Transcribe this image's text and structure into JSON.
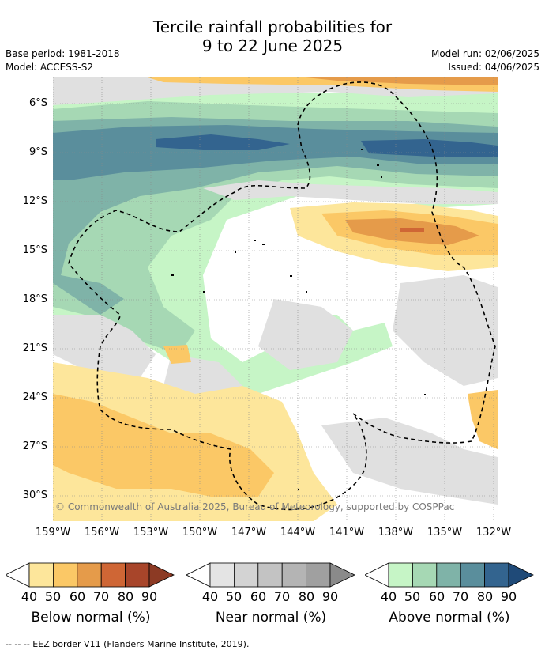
{
  "header": {
    "title_line1": "Tercile rainfall probabilities for",
    "title_line2": "9 to 22 June 2025",
    "base_period": "Base period: 1981-2018",
    "model": "Model: ACCESS-S2",
    "model_run": "Model run: 02/06/2025",
    "issued": "Issued: 04/06/2025"
  },
  "map": {
    "lat_labels": [
      "6°S",
      "9°S",
      "12°S",
      "15°S",
      "18°S",
      "21°S",
      "24°S",
      "27°S",
      "30°S"
    ],
    "lon_labels": [
      "159°W",
      "156°W",
      "153°W",
      "150°W",
      "147°W",
      "144°W",
      "141°W",
      "138°W",
      "135°W",
      "132°W"
    ],
    "copyright": "© Commonwealth of Australia 2025, Bureau of Meteorology, supported by COSPPac"
  },
  "legends": [
    {
      "title": "Below normal (%)",
      "ticks": [
        "40",
        "50",
        "60",
        "70",
        "80",
        "90"
      ],
      "colors": [
        "#fde69b",
        "#fbc866",
        "#e59b4a",
        "#cf6635",
        "#a8452a"
      ]
    },
    {
      "title": "Near normal (%)",
      "ticks": [
        "40",
        "50",
        "60",
        "70",
        "80",
        "90"
      ],
      "colors": [
        "#e4e4e4",
        "#d3d3d3",
        "#c3c3c3",
        "#b4b4b4",
        "#a0a0a0"
      ]
    },
    {
      "title": "Above normal (%)",
      "ticks": [
        "40",
        "50",
        "60",
        "70",
        "80",
        "90"
      ],
      "colors": [
        "#c6f5c6",
        "#a6d8b4",
        "#7fb3a8",
        "#5a8e9c",
        "#33648f"
      ]
    }
  ],
  "footnote": "--  --  -- EEZ border V11 (Flanders Marine Institute, 2019).",
  "colors": {
    "dry_light": "#fde69b",
    "dry_mid": "#fbc866",
    "dry_dark": "#e59b4a",
    "dry_darker": "#cf6635",
    "near": "#e0e0e0",
    "wet_light": "#c6f5c6",
    "wet_mid": "#a6d8b4",
    "wet_dark": "#7fb3a8",
    "wet_darker": "#5a8e9c",
    "wet_darkest": "#33648f"
  }
}
